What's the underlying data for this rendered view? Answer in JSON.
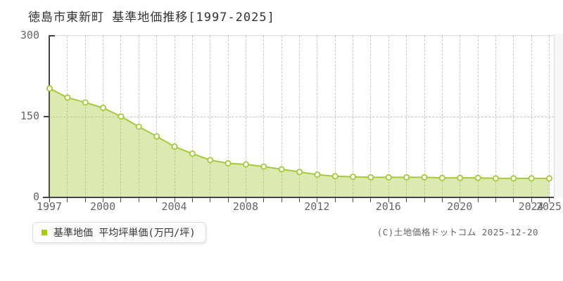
{
  "title": "徳島市東新町 基準地価推移[1997-2025]",
  "legend": {
    "label": "基準地価 平均坪単価(万円/坪)",
    "swatch_color": "#a6cc15"
  },
  "copyright": "(C)土地価格ドットコム 2025-12-20",
  "colors": {
    "title_text": "#333333",
    "axis": "#444444",
    "tick_text": "#666666",
    "grid": "#c9c9c9",
    "frame": "#dddddd",
    "line": "#a5c93c",
    "area_fill": "rgba(172,203,66,0.42)",
    "marker_fill": "#fffef7",
    "right_strip_bg": "#f7f7f7"
  },
  "chart_data": {
    "type": "area",
    "title": "徳島市東新町 基準地価推移[1997-2025]",
    "series_name": "基準地価 平均坪単価(万円/坪)",
    "unit": "万円/坪",
    "x": [
      1997,
      1998,
      1999,
      2000,
      2001,
      2002,
      2003,
      2004,
      2005,
      2006,
      2007,
      2008,
      2009,
      2010,
      2011,
      2012,
      2013,
      2014,
      2015,
      2016,
      2017,
      2018,
      2019,
      2020,
      2021,
      2022,
      2023,
      2024,
      2025
    ],
    "values": [
      201,
      184,
      175,
      165,
      149,
      130,
      112,
      93,
      80,
      68,
      62,
      60,
      56,
      51,
      46,
      41,
      38,
      37,
      36,
      36,
      36,
      36,
      35,
      35,
      35,
      34,
      34,
      34,
      34
    ],
    "x_tick_labels": [
      1997,
      2000,
      2004,
      2008,
      2012,
      2016,
      2020,
      2024,
      2025
    ],
    "y_ticks": [
      0,
      150,
      300
    ],
    "ylim": [
      0,
      300
    ],
    "xlim": [
      1997,
      2025
    ],
    "grid": "vertical dashed per year, horizontal dashed at 150",
    "legend_position": "bottom-left",
    "markers": "circle"
  }
}
